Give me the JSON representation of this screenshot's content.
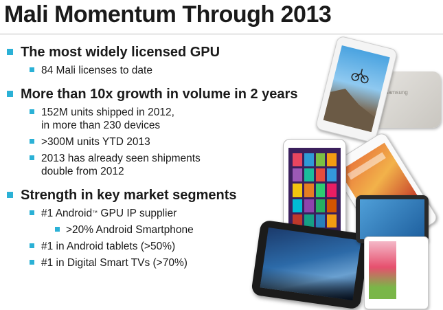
{
  "slide": {
    "title": "Mali Momentum Through 2013",
    "accent_color": "#2bb1d6",
    "sections": [
      {
        "heading": "The most widely licensed GPU",
        "items": [
          {
            "text": "84 Mali licenses to date"
          }
        ]
      },
      {
        "heading": "More than 10x growth in volume in 2 years",
        "items": [
          {
            "line1": "152M units shipped in 2012,",
            "line2": "in more than 230 devices"
          },
          {
            "text": ">300M units YTD 2013"
          },
          {
            "line1": "2013 has already seen shipments",
            "line2": "double from 2012"
          }
        ]
      },
      {
        "heading": "Strength in key market segments",
        "items": [
          {
            "prefix": "#1 Android",
            "tm": "™",
            "suffix": " GPU IP supplier",
            "sub": [
              {
                "text": ">20% Android Smartphone"
              }
            ]
          },
          {
            "text": "#1 in Android tablets (>50%)"
          },
          {
            "text": "#1 in Digital Smart TVs (>70%)"
          }
        ]
      }
    ]
  },
  "device_brand": "Samsung"
}
